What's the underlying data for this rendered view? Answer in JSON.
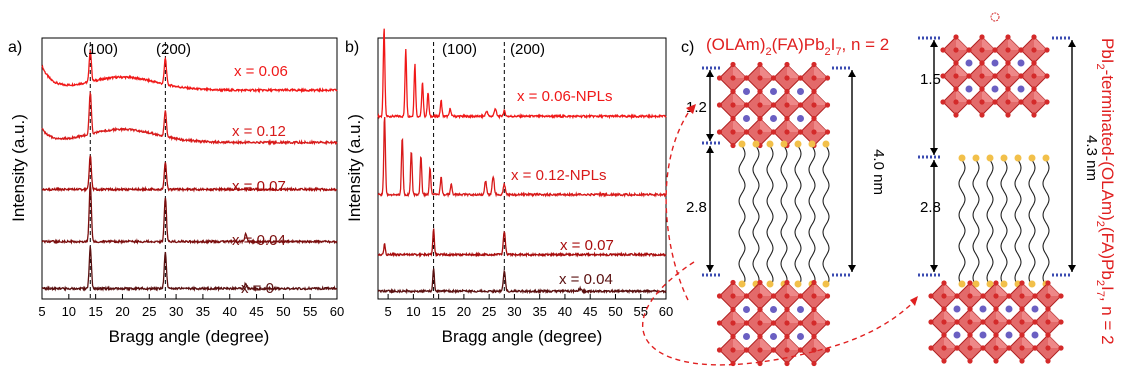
{
  "colors": {
    "bright_red": "#f01818",
    "red": "#d81a1a",
    "dark_red": "#a80d0d",
    "maroon": "#7a0e0e",
    "brown": "#5a1010",
    "octahedron": "#e05a5a",
    "octahedron_edge": "#b02020",
    "atom": "#d42a2a",
    "cation": "#6a5fc2",
    "ligand_head": "#f2c04a",
    "dotted_line": "#3a4ab0",
    "arrow": "#e02020"
  },
  "panel_a": {
    "label": "a)",
    "markers": [
      "(100)",
      "(200)"
    ]
  },
  "panel_b": {
    "label": "b)",
    "markers": [
      "(100)",
      "(200)"
    ]
  },
  "panel_c": {
    "label": "c)",
    "left_title_parts": [
      "(OLAm)",
      "2",
      "(FA)Pb",
      "2",
      "I",
      "7",
      ", n = 2"
    ],
    "left_dims": [
      "1.2",
      "2.8",
      "4.0 nm"
    ],
    "right_dims": [
      "1.5",
      "2.8",
      "4.3 nm"
    ],
    "right_title_parts": [
      "PbI",
      "2",
      "-terminated-(OLAm)",
      "2",
      "(FA)Pb",
      "2",
      "I",
      "7",
      ", n = 2"
    ]
  },
  "chart_data": [
    {
      "type": "line",
      "title": "",
      "xlabel": "Bragg angle (degree)",
      "ylabel": "Intensity (a.u.)",
      "xlim": [
        5,
        60
      ],
      "xticks": [
        5,
        10,
        15,
        20,
        25,
        30,
        35,
        40,
        45,
        50,
        55,
        60
      ],
      "reference_lines": [
        {
          "x": 14,
          "label": "(100)"
        },
        {
          "x": 28,
          "label": "(200)"
        }
      ],
      "grid": false,
      "legend": "labels beside traces",
      "series": [
        {
          "name": "x = 0.06",
          "color": "#f01818",
          "baseline": 0.8,
          "peaks": [
            {
              "x": 14,
              "h": 0.12
            },
            {
              "x": 28,
              "h": 0.1
            }
          ],
          "background": "broad hump, rising at low angle"
        },
        {
          "name": "x = 0.12",
          "color": "#d81a1a",
          "baseline": 0.6,
          "peaks": [
            {
              "x": 14,
              "h": 0.16
            },
            {
              "x": 28,
              "h": 0.1
            }
          ],
          "background": "broad hump"
        },
        {
          "name": "x = 0.07",
          "color": "#a80d0d",
          "baseline": 0.42,
          "peaks": [
            {
              "x": 14,
              "h": 0.13
            },
            {
              "x": 28,
              "h": 0.1
            }
          ],
          "background": "flat"
        },
        {
          "name": "x = 0.04",
          "color": "#7a0e0e",
          "baseline": 0.22,
          "peaks": [
            {
              "x": 14,
              "h": 0.22
            },
            {
              "x": 28,
              "h": 0.17
            },
            {
              "x": 43,
              "h": 0.03
            }
          ],
          "background": "flat"
        },
        {
          "name": "x = 0",
          "color": "#5a1010",
          "baseline": 0.04,
          "peaks": [
            {
              "x": 14,
              "h": 0.16
            },
            {
              "x": 28,
              "h": 0.14
            },
            {
              "x": 43,
              "h": 0.02
            }
          ],
          "background": "flat"
        }
      ]
    },
    {
      "type": "line",
      "title": "",
      "xlabel": "Bragg angle (degree)",
      "ylabel": "Intensity (a.u.)",
      "xlim": [
        3,
        60
      ],
      "xticks": [
        5,
        10,
        15,
        20,
        25,
        30,
        35,
        40,
        45,
        50,
        55,
        60
      ],
      "reference_lines": [
        {
          "x": 14,
          "label": "(100)"
        },
        {
          "x": 28,
          "label": "(200)"
        }
      ],
      "grid": false,
      "legend": "labels beside traces",
      "series": [
        {
          "name": "x = 0.06-NPLs",
          "color": "#f01818",
          "baseline": 0.7,
          "peaks": [
            {
              "x": 4.2,
              "h": 0.34
            },
            {
              "x": 8.5,
              "h": 0.26
            },
            {
              "x": 10.3,
              "h": 0.2
            },
            {
              "x": 11.8,
              "h": 0.13
            },
            {
              "x": 12.9,
              "h": 0.09
            },
            {
              "x": 15.5,
              "h": 0.06
            },
            {
              "x": 17.3,
              "h": 0.03
            },
            {
              "x": 24.5,
              "h": 0.02
            },
            {
              "x": 26.2,
              "h": 0.03
            },
            {
              "x": 28,
              "h": 0.02
            }
          ]
        },
        {
          "name": "x = 0.12-NPLs",
          "color": "#d81a1a",
          "baseline": 0.4,
          "peaks": [
            {
              "x": 4.3,
              "h": 0.3
            },
            {
              "x": 7.8,
              "h": 0.22
            },
            {
              "x": 9.6,
              "h": 0.17
            },
            {
              "x": 11.5,
              "h": 0.15
            },
            {
              "x": 13.3,
              "h": 0.1
            },
            {
              "x": 15.5,
              "h": 0.07
            },
            {
              "x": 17.5,
              "h": 0.04
            },
            {
              "x": 24.3,
              "h": 0.05
            },
            {
              "x": 25.8,
              "h": 0.07
            },
            {
              "x": 28,
              "h": 0.04
            }
          ]
        },
        {
          "name": "x = 0.07",
          "color": "#a80d0d",
          "baseline": 0.17,
          "peaks": [
            {
              "x": 4.3,
              "h": 0.04
            },
            {
              "x": 14,
              "h": 0.1
            },
            {
              "x": 28,
              "h": 0.09
            }
          ]
        },
        {
          "name": "x = 0.04",
          "color": "#5a1010",
          "baseline": 0.03,
          "peaks": [
            {
              "x": 14,
              "h": 0.09
            },
            {
              "x": 28,
              "h": 0.08
            },
            {
              "x": 43,
              "h": 0.01
            }
          ]
        }
      ]
    }
  ]
}
